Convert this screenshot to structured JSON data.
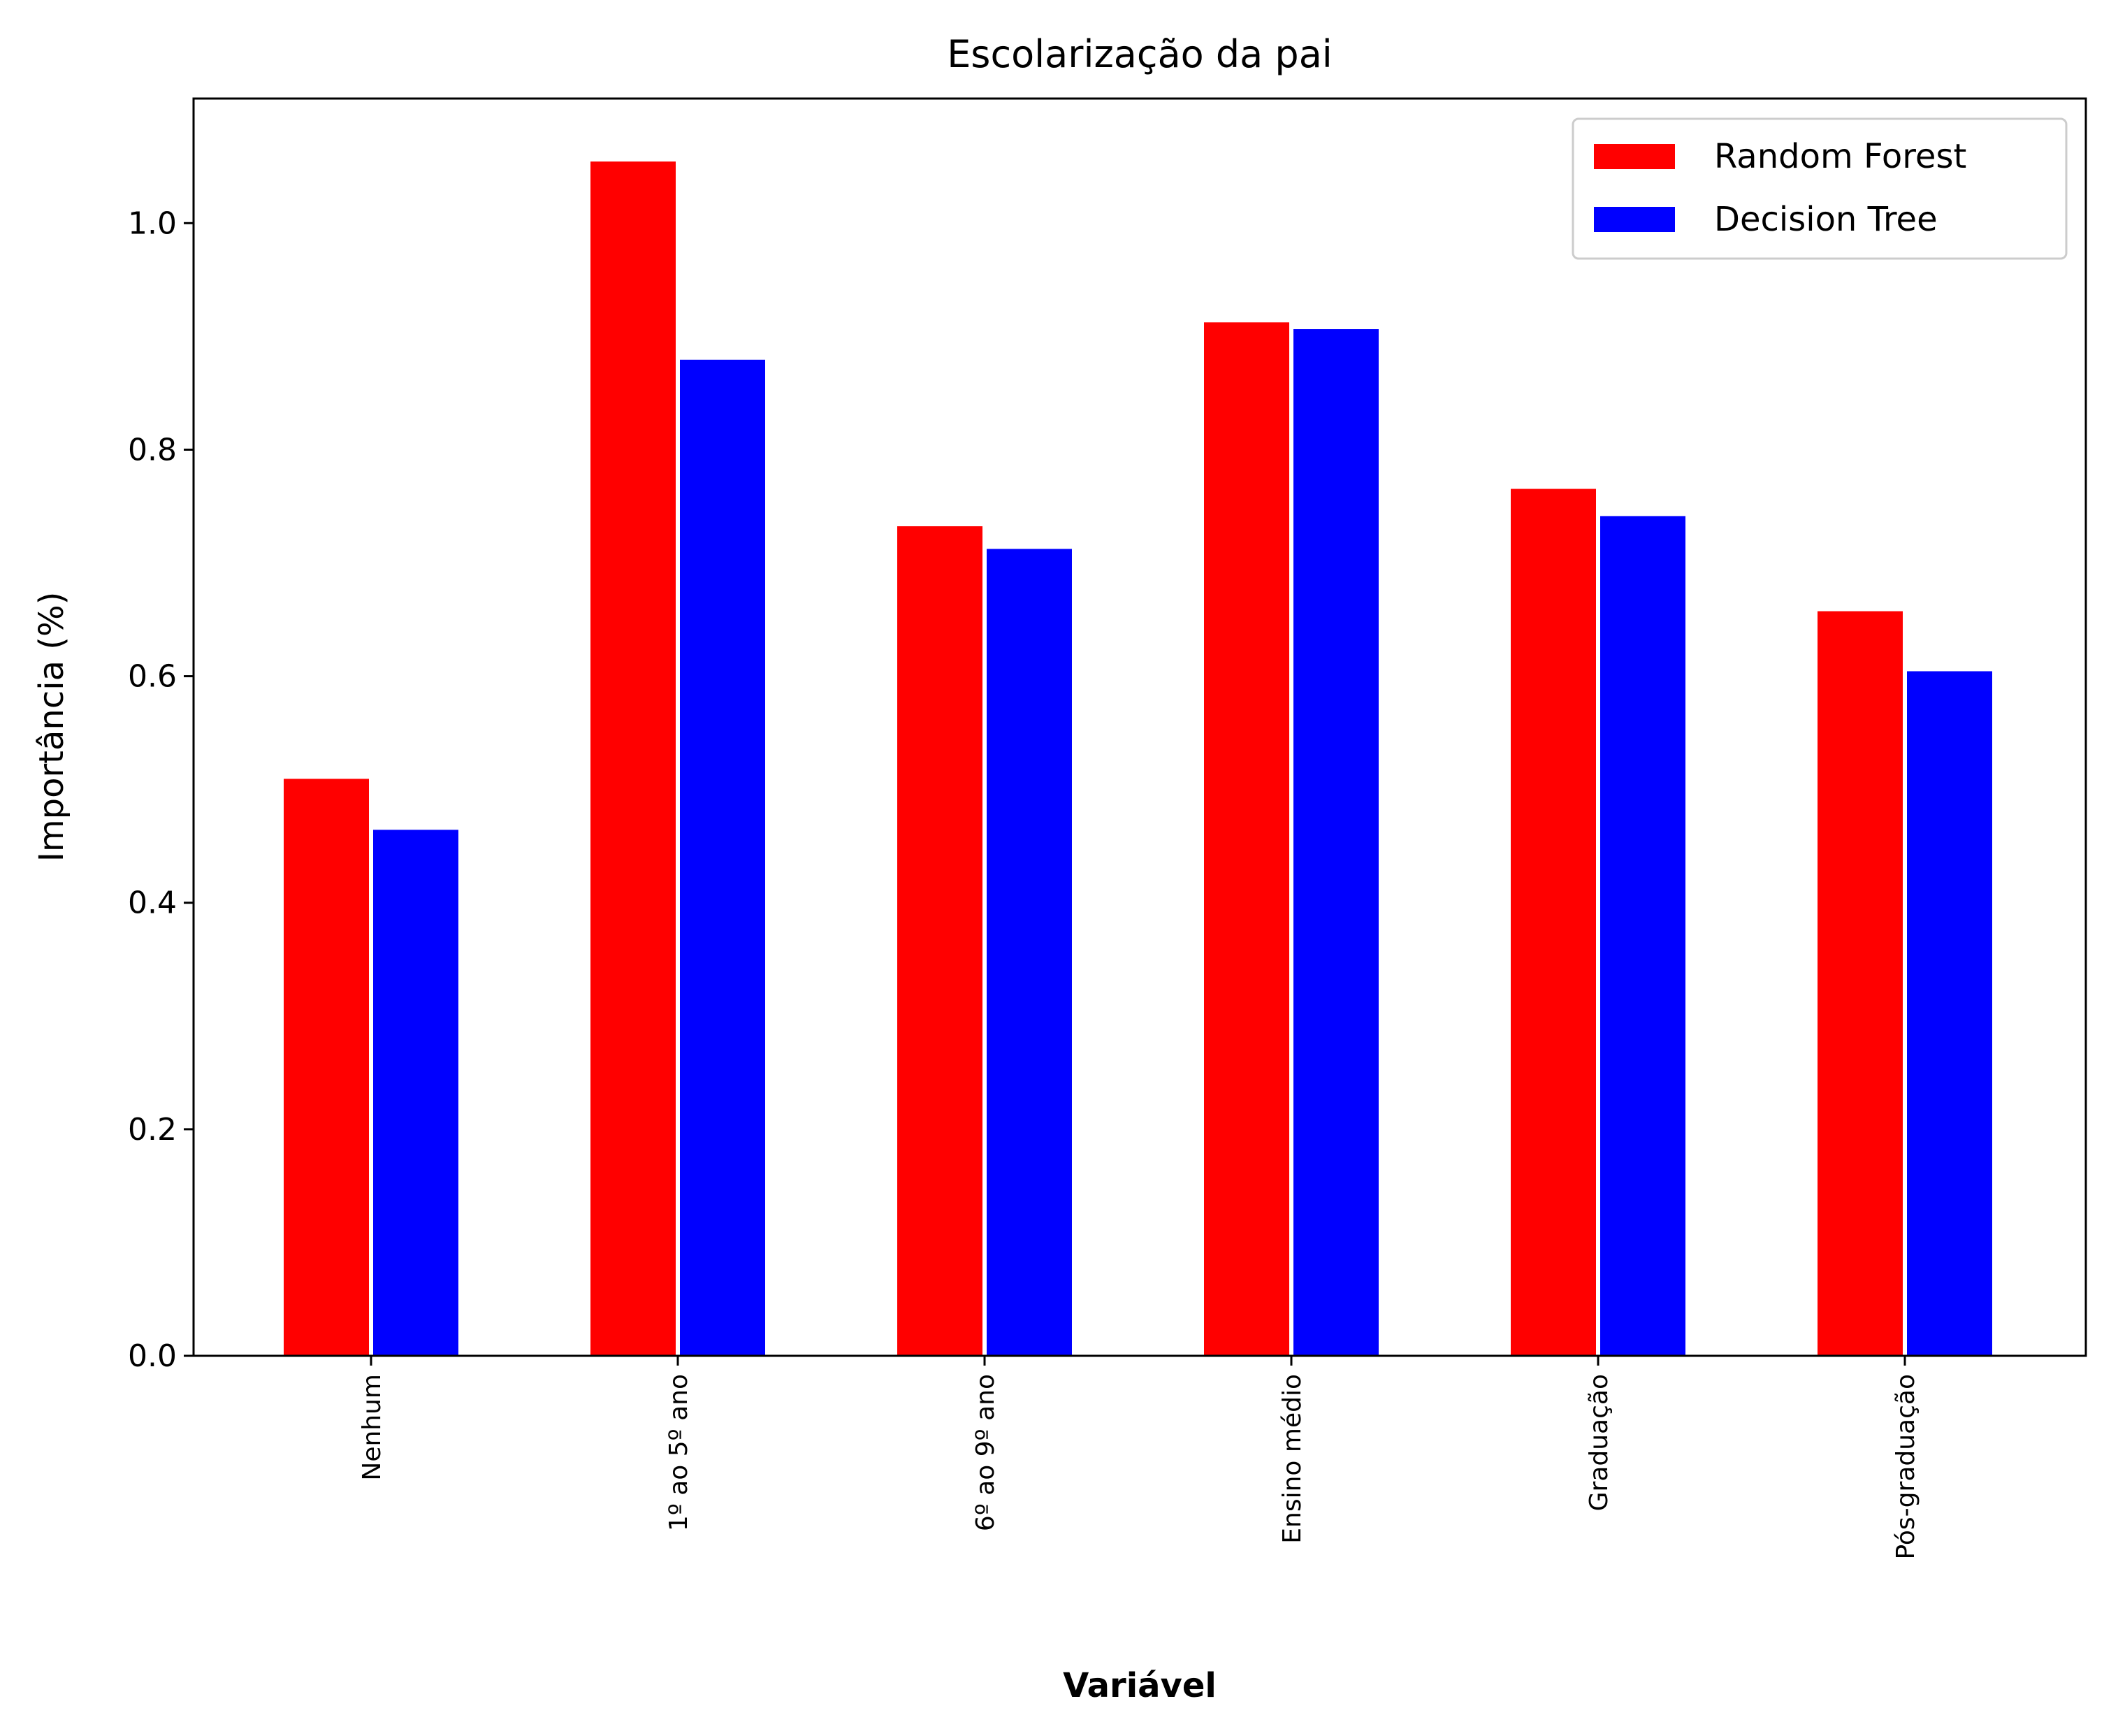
{
  "chart_data": {
    "type": "bar",
    "title": "Escolarização da pai",
    "xlabel": "Variável",
    "ylabel": "Importância (%)",
    "categories": [
      "Nenhum",
      "1º ao 5º ano",
      "6º ao 9º ano",
      "Ensino médio",
      "Graduação",
      "Pós-graduação"
    ],
    "series": [
      {
        "name": "Random Forest",
        "color": "#ff0000",
        "values": [
          0.51,
          1.055,
          0.733,
          0.913,
          0.766,
          0.658
        ]
      },
      {
        "name": "Decision Tree",
        "color": "#0000ff",
        "values": [
          0.465,
          0.88,
          0.713,
          0.907,
          0.742,
          0.605
        ]
      }
    ],
    "ylim": [
      0,
      1.11
    ],
    "yticks": [
      "0.0",
      "0.2",
      "0.4",
      "0.6",
      "0.8",
      "1.0"
    ],
    "grid": false,
    "legend": "top-right"
  }
}
